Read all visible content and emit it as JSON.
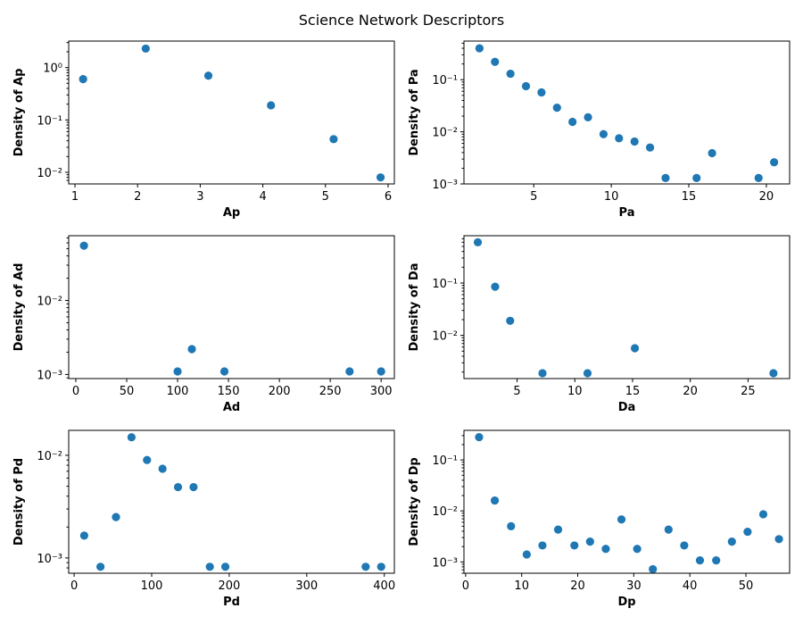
{
  "suptitle": "Science Network Descriptors",
  "marker_color": "#1f77b4",
  "chart_data": [
    {
      "type": "scatter",
      "xlabel": "Ap",
      "ylabel": "Density of Ap",
      "xlim": [
        0.9,
        6.1
      ],
      "ylim": [
        0.006,
        3.2
      ],
      "yscale": "log",
      "xticks": [
        1,
        2,
        3,
        4,
        5,
        6
      ],
      "xtick_labels": [
        "1",
        "2",
        "3",
        "4",
        "5",
        "6"
      ],
      "yticks": [
        0.01,
        0.1,
        1
      ],
      "ytick_labels": [
        "10⁻²",
        "10⁻¹",
        "10⁰"
      ],
      "x": [
        1.13,
        2.13,
        3.13,
        4.13,
        5.13,
        5.88
      ],
      "y": [
        0.6,
        2.3,
        0.7,
        0.19,
        0.043,
        0.008
      ]
    },
    {
      "type": "scatter",
      "xlabel": "Pa",
      "ylabel": "Density of Pa",
      "xlim": [
        0.5,
        21.5
      ],
      "ylim": [
        0.001,
        0.55
      ],
      "yscale": "log",
      "xticks": [
        5,
        10,
        15,
        20
      ],
      "xtick_labels": [
        "5",
        "10",
        "15",
        "20"
      ],
      "yticks": [
        0.001,
        0.01,
        0.1
      ],
      "ytick_labels": [
        "10⁻³",
        "10⁻²",
        "10⁻¹"
      ],
      "x": [
        1.5,
        2.5,
        3.5,
        4.5,
        5.5,
        6.5,
        7.5,
        8.5,
        9.5,
        10.5,
        11.5,
        12.5,
        13.5,
        15.5,
        16.5,
        19.5,
        20.5
      ],
      "y": [
        0.4,
        0.22,
        0.13,
        0.075,
        0.057,
        0.029,
        0.0155,
        0.019,
        0.009,
        0.0075,
        0.0065,
        0.005,
        0.0013,
        0.0013,
        0.0039,
        0.0013,
        0.0026
      ]
    },
    {
      "type": "scatter",
      "xlabel": "Ad",
      "ylabel": "Density of Ad",
      "xlim": [
        -7,
        313
      ],
      "ylim": [
        0.00088,
        0.075
      ],
      "yscale": "log",
      "xticks": [
        0,
        50,
        100,
        150,
        200,
        250,
        300
      ],
      "xtick_labels": [
        "0",
        "50",
        "100",
        "150",
        "200",
        "250",
        "300"
      ],
      "yticks": [
        0.001,
        0.01
      ],
      "ytick_labels": [
        "10⁻³",
        "10⁻²"
      ],
      "x": [
        8,
        100,
        114,
        146,
        269,
        300
      ],
      "y": [
        0.055,
        0.0011,
        0.0022,
        0.0011,
        0.0011,
        0.0011
      ]
    },
    {
      "type": "scatter",
      "xlabel": "Da",
      "ylabel": "Density of Da",
      "xlim": [
        0.4,
        28.6
      ],
      "ylim": [
        0.0015,
        0.8
      ],
      "yscale": "log",
      "xticks": [
        5,
        10,
        15,
        20,
        25
      ],
      "xtick_labels": [
        "5",
        "10",
        "15",
        "20",
        "25"
      ],
      "yticks": [
        0.01,
        0.1
      ],
      "ytick_labels": [
        "10⁻²",
        "10⁻¹"
      ],
      "x": [
        1.6,
        3.1,
        4.4,
        7.2,
        11.1,
        15.2,
        27.2
      ],
      "y": [
        0.6,
        0.085,
        0.019,
        0.0019,
        0.0019,
        0.0057,
        0.0019
      ]
    },
    {
      "type": "scatter",
      "xlabel": "Pd",
      "ylabel": "Density of Pd",
      "xlim": [
        -7,
        413
      ],
      "ylim": [
        0.00071,
        0.0175
      ],
      "yscale": "log",
      "xticks": [
        0,
        100,
        200,
        300,
        400
      ],
      "xtick_labels": [
        "0",
        "100",
        "200",
        "300",
        "400"
      ],
      "yticks": [
        0.001,
        0.01
      ],
      "ytick_labels": [
        "10⁻³",
        "10⁻²"
      ],
      "x": [
        13,
        34,
        54,
        74,
        94,
        114,
        134,
        154,
        175,
        195,
        376,
        396
      ],
      "y": [
        0.00165,
        0.00082,
        0.0025,
        0.015,
        0.009,
        0.0074,
        0.0049,
        0.0049,
        0.00082,
        0.00082,
        0.00082,
        0.00082
      ]
    },
    {
      "type": "scatter",
      "xlabel": "Dp",
      "ylabel": "Density of Dp",
      "xlim": [
        -0.3,
        57.8
      ],
      "ylim": [
        0.0006,
        0.38
      ],
      "yscale": "log",
      "xticks": [
        0,
        10,
        20,
        30,
        40,
        50
      ],
      "xtick_labels": [
        "0",
        "10",
        "20",
        "30",
        "40",
        "50"
      ],
      "yticks": [
        0.001,
        0.01,
        0.1
      ],
      "ytick_labels": [
        "10⁻³",
        "10⁻²",
        "10⁻¹"
      ],
      "x": [
        2.4,
        5.2,
        8.1,
        10.9,
        13.7,
        16.5,
        19.4,
        22.2,
        25.0,
        27.8,
        30.6,
        33.4,
        36.2,
        39.0,
        41.8,
        44.7,
        47.5,
        50.3,
        53.1,
        55.9
      ],
      "y": [
        0.28,
        0.016,
        0.005,
        0.0014,
        0.0021,
        0.0043,
        0.0021,
        0.0025,
        0.0018,
        0.0068,
        0.0018,
        0.00072,
        0.0043,
        0.0021,
        0.00107,
        0.00107,
        0.0025,
        0.0039,
        0.0086,
        0.0028
      ]
    }
  ]
}
